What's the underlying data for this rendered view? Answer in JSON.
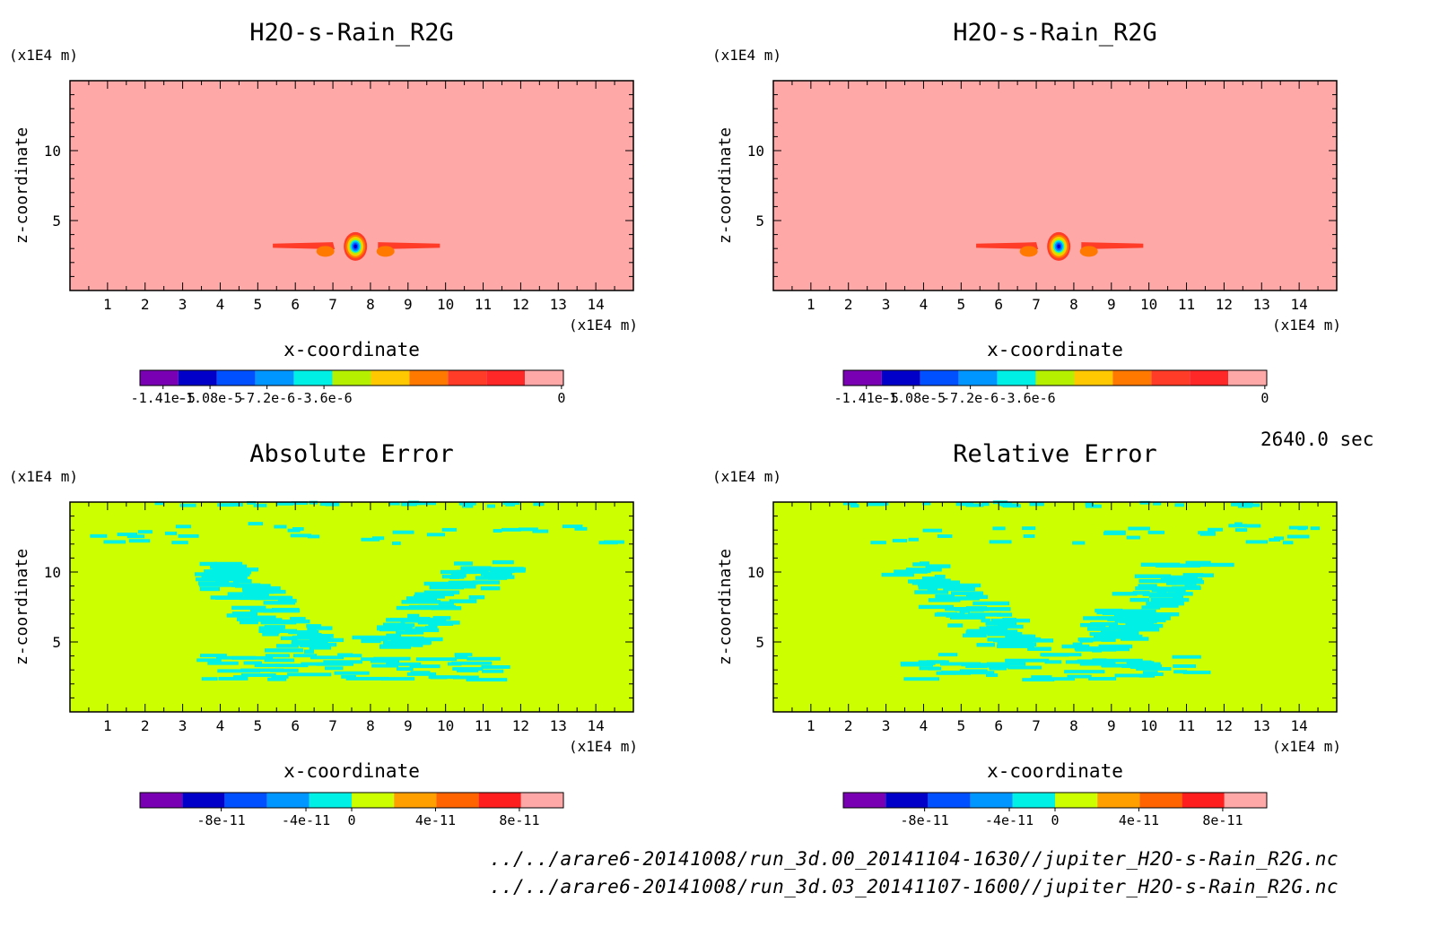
{
  "time_label": "2640.0 sec",
  "footer": {
    "file1": "../../arare6-20141008/run_3d.00_20141104-1630//jupiter_H2O-s-Rain_R2G.nc",
    "file2": "../../arare6-20141008/run_3d.03_20141107-1600//jupiter_H2O-s-Rain_R2G.nc"
  },
  "chart_data": [
    {
      "type": "heatmap",
      "title": "H2O-s-Rain_R2G",
      "xlabel": "x-coordinate",
      "ylabel": "z-coordinate",
      "x_unit": "(x1E4 m)",
      "y_unit": "(x1E4 m)",
      "xlim": [
        0,
        15
      ],
      "ylim": [
        0,
        15
      ],
      "xticks": [
        "1",
        "2",
        "3",
        "4",
        "5",
        "6",
        "7",
        "8",
        "9",
        "10",
        "11",
        "12",
        "13",
        "14"
      ],
      "yticks": [
        "5",
        "10"
      ],
      "background_value": 0,
      "colorbar": {
        "colors": [
          "#7a00b4",
          "#0000c8",
          "#0050ff",
          "#0096ff",
          "#00f0e6",
          "#b4f000",
          "#ffc800",
          "#ff7800",
          "#ff3c28",
          "#ff2828",
          "#ffa8a8"
        ],
        "tick_labels": [
          "-1.41e-5",
          "-1.08e-5",
          "-7.2e-6",
          "-3.6e-6",
          "0"
        ]
      },
      "features": "negative anomaly centered near x=7.6, z=3.1 (min about -1.41e-5), flanking bands from x=5.4 to 9.8 at z about 3.2"
    },
    {
      "type": "heatmap",
      "title": "H2O-s-Rain_R2G",
      "xlabel": "x-coordinate",
      "ylabel": "z-coordinate",
      "x_unit": "(x1E4 m)",
      "y_unit": "(x1E4 m)",
      "xlim": [
        0,
        15
      ],
      "ylim": [
        0,
        15
      ],
      "xticks": [
        "1",
        "2",
        "3",
        "4",
        "5",
        "6",
        "7",
        "8",
        "9",
        "10",
        "11",
        "12",
        "13",
        "14"
      ],
      "yticks": [
        "5",
        "10"
      ],
      "background_value": 0,
      "colorbar": {
        "colors": [
          "#7a00b4",
          "#0000c8",
          "#0050ff",
          "#0096ff",
          "#00f0e6",
          "#b4f000",
          "#ffc800",
          "#ff7800",
          "#ff3c28",
          "#ff2828",
          "#ffa8a8"
        ],
        "tick_labels": [
          "-1.41e-5",
          "-1.08e-5",
          "-7.2e-6",
          "-3.6e-6",
          "0"
        ]
      },
      "features": "identical to left panel"
    },
    {
      "type": "heatmap",
      "title": "Absolute Error",
      "xlabel": "x-coordinate",
      "ylabel": "z-coordinate",
      "x_unit": "(x1E4 m)",
      "y_unit": "(x1E4 m)",
      "xlim": [
        0,
        15
      ],
      "ylim": [
        0,
        15
      ],
      "xticks": [
        "1",
        "2",
        "3",
        "4",
        "5",
        "6",
        "7",
        "8",
        "9",
        "10",
        "11",
        "12",
        "13",
        "14"
      ],
      "yticks": [
        "5",
        "10"
      ],
      "background_value": 0,
      "colorbar": {
        "colors": [
          "#7a00b4",
          "#0000c8",
          "#0050ff",
          "#0096ff",
          "#00f0e6",
          "#ccff00",
          "#ffa000",
          "#ff6400",
          "#ff1e1e",
          "#ffa8a8"
        ],
        "tick_labels": [
          "-8e-11",
          "-4e-11",
          "0",
          "4e-11",
          "8e-11"
        ]
      },
      "features": "small negative patches forming a V shape from z about 2 to 10, centered at x=7.5"
    },
    {
      "type": "heatmap",
      "title": "Relative Error",
      "xlabel": "x-coordinate",
      "ylabel": "z-coordinate",
      "x_unit": "(x1E4 m)",
      "y_unit": "(x1E4 m)",
      "xlim": [
        0,
        15
      ],
      "ylim": [
        0,
        15
      ],
      "xticks": [
        "1",
        "2",
        "3",
        "4",
        "5",
        "6",
        "7",
        "8",
        "9",
        "10",
        "11",
        "12",
        "13",
        "14"
      ],
      "yticks": [
        "5",
        "10"
      ],
      "background_value": 0,
      "colorbar": {
        "colors": [
          "#7a00b4",
          "#0000c8",
          "#0050ff",
          "#0096ff",
          "#00f0e6",
          "#ccff00",
          "#ffa000",
          "#ff6400",
          "#ff1e1e",
          "#ffa8a8"
        ],
        "tick_labels": [
          "-8e-11",
          "-4e-11",
          "0",
          "4e-11",
          "8e-11"
        ]
      },
      "features": "small negative patches forming a V/U shape from z about 2 to 10, centered at x=7.5"
    }
  ]
}
